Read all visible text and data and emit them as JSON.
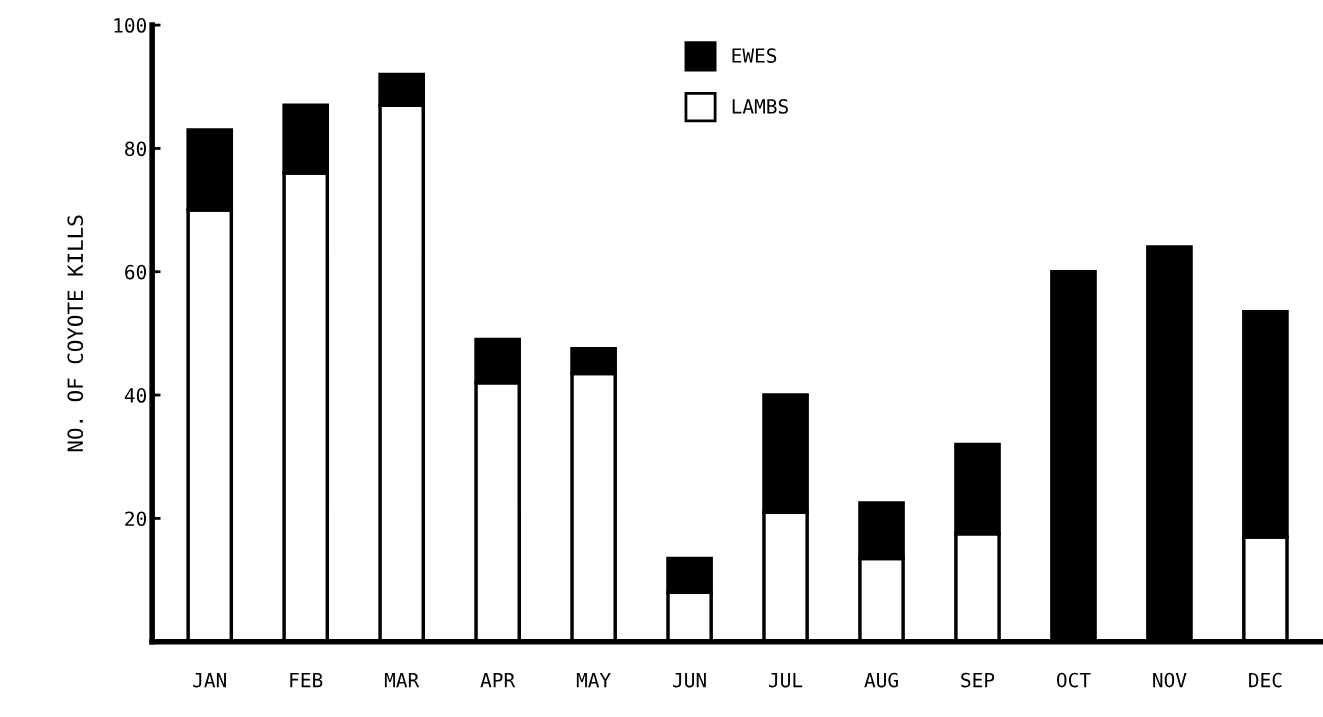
{
  "chart_data": {
    "type": "bar",
    "stacked": true,
    "ylabel": "NO. OF COYOTE KILLS",
    "categories": [
      "JAN",
      "FEB",
      "MAR",
      "APR",
      "MAY",
      "JUN",
      "JUL",
      "AUG",
      "SEP",
      "OCT",
      "NOV",
      "DEC"
    ],
    "series": [
      {
        "name": "LAMBS",
        "color": "#ffffff",
        "values": [
          70,
          76,
          87,
          42,
          43.5,
          8,
          21,
          13.5,
          17.5,
          0,
          0,
          17
        ]
      },
      {
        "name": "EWES",
        "color": "#000000",
        "values": [
          13,
          11,
          5,
          7,
          4,
          5.5,
          19,
          9,
          14.5,
          60,
          64,
          36.5
        ]
      }
    ],
    "ylim": [
      0,
      100
    ],
    "yticks": [
      20,
      40,
      60,
      80,
      100
    ],
    "grid": false,
    "legend": "top"
  }
}
